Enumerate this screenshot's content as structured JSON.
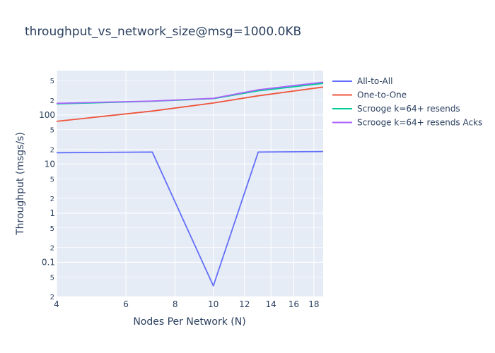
{
  "chart_data": {
    "type": "line",
    "title": "throughput_vs_network_size@msg=1000.0KB",
    "xlabel": "Nodes Per Network (N)",
    "ylabel": "Throughput (msgs/s)",
    "x_scale": "log",
    "y_scale": "log",
    "xlim": [
      4,
      19
    ],
    "ylim": [
      0.02,
      800
    ],
    "grid": true,
    "legend_position": "right",
    "x_ticks": [
      "4",
      "6",
      "8",
      "10",
      "12",
      "14",
      "16",
      "18"
    ],
    "y_major_ticks": [
      "0.1",
      "1",
      "10",
      "100"
    ],
    "y_minor_ticks": [
      "2",
      "5",
      "2",
      "5",
      "2",
      "5",
      "2",
      "5",
      "2",
      "5"
    ],
    "series": [
      {
        "name": "All-to-All",
        "color": "#636efa",
        "x": [
          4,
          7,
          10,
          13,
          19
        ],
        "y": [
          17,
          17.5,
          0.033,
          17.5,
          18
        ]
      },
      {
        "name": "One-to-One",
        "color": "#ef553b",
        "x": [
          4,
          7,
          10,
          13,
          19
        ],
        "y": [
          74,
          120,
          175,
          245,
          370
        ]
      },
      {
        "name": "Scrooge k=64+ resends",
        "color": "#00cc96",
        "x": [
          4,
          7,
          10,
          13,
          19
        ],
        "y": [
          168,
          190,
          215,
          310,
          440
        ]
      },
      {
        "name": "Scrooge k=64+ resends Acks",
        "color": "#ab63fa",
        "x": [
          4,
          7,
          10,
          13,
          19
        ],
        "y": [
          172,
          192,
          218,
          325,
          465
        ]
      }
    ]
  }
}
